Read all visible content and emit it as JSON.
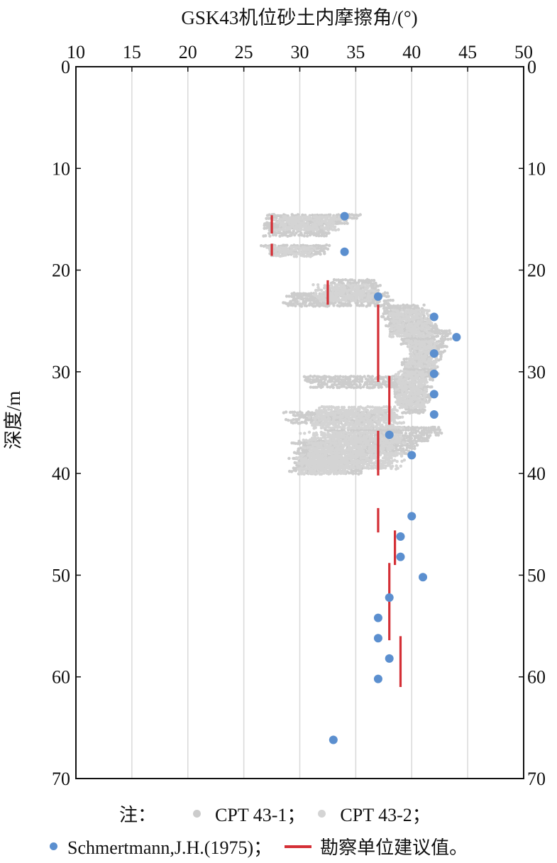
{
  "chart_data": {
    "type": "scatter",
    "title": "GSK43机位砂土内摩擦角/(°)",
    "xlabel": "GSK43机位砂土内摩擦角/(°)",
    "ylabel": "深度/m",
    "xlim": [
      10,
      50
    ],
    "ylim": [
      0,
      70
    ],
    "y_inverted": true,
    "x_axis_position": "top",
    "y_axis_mirrored_right": true,
    "x_ticks": [
      "10",
      "15",
      "20",
      "25",
      "30",
      "35",
      "40",
      "45",
      "50"
    ],
    "y_ticks": [
      "0",
      "10",
      "20",
      "30",
      "40",
      "50",
      "60",
      "70"
    ],
    "grid": "vertical",
    "legend_note": "注：",
    "legend_placement": "bottom",
    "series": [
      {
        "name": "CPT 43-1；",
        "kind": "dense-points",
        "color": "#cccccc",
        "bands": [
          {
            "y": [
              14.6,
              15.4
            ],
            "x": [
              27.0,
              35.5
            ]
          },
          {
            "y": [
              15.4,
              16.6
            ],
            "x": [
              26.5,
              33.5
            ]
          },
          {
            "y": [
              17.6,
              18.4
            ],
            "x": [
              26.5,
              32.8
            ]
          },
          {
            "y": [
              21.0,
              22.3
            ],
            "x": [
              32.5,
              37.5
            ]
          },
          {
            "y": [
              22.3,
              23.5
            ],
            "x": [
              28.5,
              38.5
            ]
          },
          {
            "y": [
              23.5,
              24.8
            ],
            "x": [
              37.0,
              41.5
            ]
          },
          {
            "y": [
              24.8,
              26.0
            ],
            "x": [
              37.5,
              42.5
            ]
          },
          {
            "y": [
              26.0,
              27.5
            ],
            "x": [
              39.0,
              43.5
            ]
          },
          {
            "y": [
              27.5,
              28.8
            ],
            "x": [
              40.0,
              43.0
            ]
          },
          {
            "y": [
              28.8,
              30.5
            ],
            "x": [
              39.0,
              42.5
            ]
          },
          {
            "y": [
              30.5,
              31.5
            ],
            "x": [
              30.0,
              42.0
            ]
          },
          {
            "y": [
              31.5,
              33.0
            ],
            "x": [
              38.5,
              42.0
            ]
          },
          {
            "y": [
              33.0,
              34.0
            ],
            "x": [
              39.0,
              41.5
            ]
          },
          {
            "y": [
              34.0,
              35.0
            ],
            "x": [
              28.5,
              39.0
            ]
          },
          {
            "y": [
              35.5,
              36.8
            ],
            "x": [
              32.0,
              43.0
            ]
          },
          {
            "y": [
              36.8,
              38.0
            ],
            "x": [
              29.0,
              41.0
            ]
          },
          {
            "y": [
              38.0,
              40.0
            ],
            "x": [
              29.0,
              36.5
            ]
          }
        ]
      },
      {
        "name": "CPT 43-2；",
        "kind": "dense-points",
        "color": "#d4d4d4",
        "bands": [
          {
            "y": [
              14.8,
              16.0
            ],
            "x": [
              27.5,
              34.0
            ]
          },
          {
            "y": [
              17.8,
              18.6
            ],
            "x": [
              27.0,
              31.5
            ]
          },
          {
            "y": [
              21.5,
              23.0
            ],
            "x": [
              31.0,
              37.0
            ]
          },
          {
            "y": [
              24.0,
              26.5
            ],
            "x": [
              38.0,
              42.0
            ]
          },
          {
            "y": [
              27.0,
              29.5
            ],
            "x": [
              39.5,
              42.5
            ]
          },
          {
            "y": [
              30.0,
              33.5
            ],
            "x": [
              38.5,
              41.5
            ]
          },
          {
            "y": [
              33.5,
              35.5
            ],
            "x": [
              30.5,
              39.5
            ]
          },
          {
            "y": [
              36.0,
              39.5
            ],
            "x": [
              30.0,
              39.5
            ]
          },
          {
            "y": [
              38.5,
              40.0
            ],
            "x": [
              29.5,
              34.5
            ]
          }
        ]
      },
      {
        "name": "Schmertmann,J.H.(1975)；",
        "kind": "points",
        "color": "#5b8fcf",
        "points": [
          {
            "x": 34,
            "y": 14.7
          },
          {
            "x": 34,
            "y": 18.2
          },
          {
            "x": 37,
            "y": 22.6
          },
          {
            "x": 42,
            "y": 24.6
          },
          {
            "x": 44,
            "y": 26.6
          },
          {
            "x": 42,
            "y": 28.2
          },
          {
            "x": 42,
            "y": 30.2
          },
          {
            "x": 42,
            "y": 32.2
          },
          {
            "x": 42,
            "y": 34.2
          },
          {
            "x": 38,
            "y": 36.2
          },
          {
            "x": 40,
            "y": 38.2
          },
          {
            "x": 40,
            "y": 44.2
          },
          {
            "x": 39,
            "y": 46.2
          },
          {
            "x": 39,
            "y": 48.2
          },
          {
            "x": 41,
            "y": 50.2
          },
          {
            "x": 38,
            "y": 52.2
          },
          {
            "x": 37,
            "y": 54.2
          },
          {
            "x": 37,
            "y": 56.2
          },
          {
            "x": 38,
            "y": 58.2
          },
          {
            "x": 37,
            "y": 60.2
          },
          {
            "x": 33,
            "y": 66.2
          }
        ]
      },
      {
        "name": "勘察单位建议值。",
        "kind": "segments",
        "color": "#d42f36",
        "segments": [
          {
            "x": 27.5,
            "y": [
              14.6,
              16.4
            ]
          },
          {
            "x": 27.5,
            "y": [
              17.4,
              18.6
            ]
          },
          {
            "x": 32.5,
            "y": [
              21.0,
              23.4
            ]
          },
          {
            "x": 37.0,
            "y": [
              23.4,
              31.0
            ]
          },
          {
            "x": 38.0,
            "y": [
              30.4,
              35.2
            ]
          },
          {
            "x": 37.0,
            "y": [
              35.8,
              40.2
            ]
          },
          {
            "x": 37.0,
            "y": [
              43.4,
              45.8
            ]
          },
          {
            "x": 38.5,
            "y": [
              45.6,
              49.0
            ]
          },
          {
            "x": 38.0,
            "y": [
              48.8,
              56.4
            ]
          },
          {
            "x": 39.0,
            "y": [
              56.0,
              61.0
            ]
          }
        ]
      }
    ]
  }
}
